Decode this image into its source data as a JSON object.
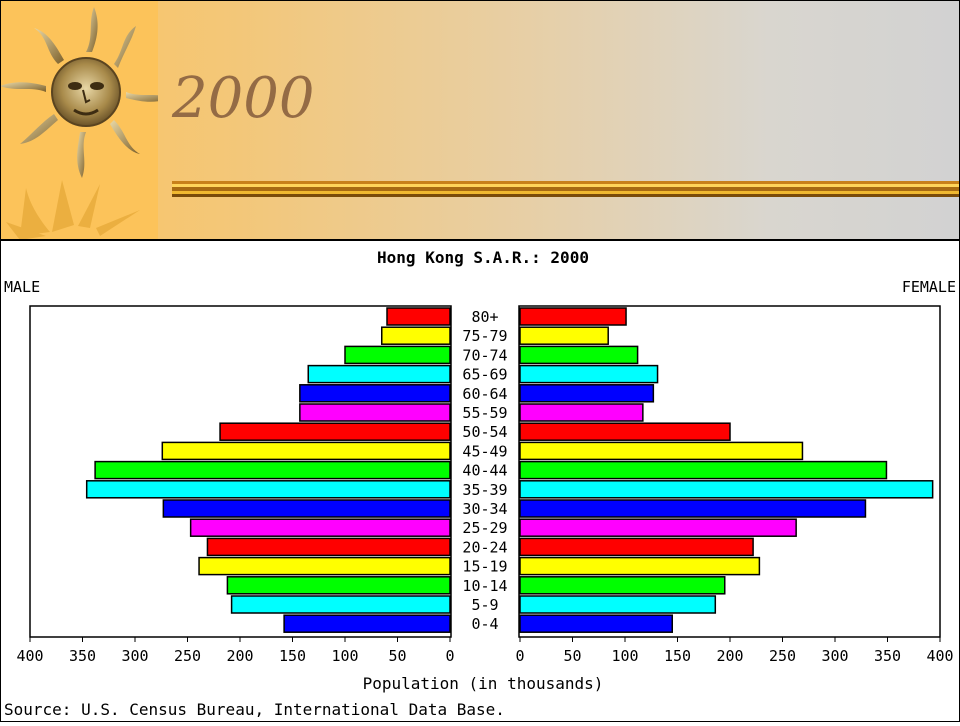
{
  "slide": {
    "title": "2000"
  },
  "chart_data": {
    "type": "bar",
    "title": "Hong Kong S.A.R.: 2000",
    "left_label": "MALE",
    "right_label": "FEMALE",
    "xlabel": "Population (in thousands)",
    "source": "Source: U.S. Census Bureau, International Data Base.",
    "xlim": [
      0,
      400
    ],
    "ticks": [
      400,
      350,
      300,
      250,
      200,
      150,
      100,
      50,
      0
    ],
    "right_ticks": [
      0,
      50,
      100,
      150,
      200,
      250,
      300,
      350,
      400
    ],
    "categories": [
      "80+",
      "75-79",
      "70-74",
      "65-69",
      "60-64",
      "55-59",
      "50-54",
      "45-49",
      "40-44",
      "35-39",
      "30-34",
      "25-29",
      "20-24",
      "15-19",
      "10-14",
      "5-9",
      "0-4"
    ],
    "series": [
      {
        "name": "MALE",
        "values": [
          60,
          65,
          100,
          135,
          143,
          143,
          219,
          274,
          338,
          346,
          273,
          247,
          231,
          239,
          212,
          208,
          158
        ]
      },
      {
        "name": "FEMALE",
        "values": [
          101,
          84,
          112,
          131,
          127,
          117,
          200,
          269,
          349,
          393,
          329,
          263,
          222,
          228,
          195,
          186,
          145
        ]
      }
    ],
    "colors": [
      "#ff0000",
      "#ffff00",
      "#00ff00",
      "#00ffff",
      "#0000ff",
      "#ff00ff",
      "#ff0000",
      "#ffff00",
      "#00ff00",
      "#00ffff",
      "#0000ff",
      "#ff00ff",
      "#ff0000",
      "#ffff00",
      "#00ff00",
      "#00ffff",
      "#0000ff"
    ]
  }
}
